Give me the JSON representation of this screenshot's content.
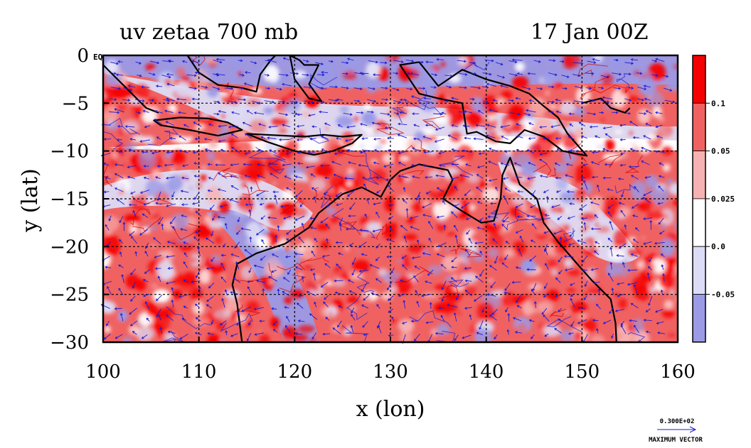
{
  "title_left": "uv zetaa 700 mb",
  "title_right": "17 Jan 00Z",
  "chart_data": {
    "type": "heatmap",
    "title": "uv zetaa 700 mb",
    "subtitle": "17 Jan 00Z",
    "xlabel": "x (lon)",
    "ylabel": "y (lat)",
    "xlim": [
      100,
      160
    ],
    "ylim": [
      -30,
      0
    ],
    "x_ticks": [
      100,
      110,
      120,
      130,
      140,
      150,
      160
    ],
    "y_ticks": [
      0,
      -5,
      -10,
      -15,
      -20,
      -25,
      -30
    ],
    "x_tick_labels": [
      "100",
      "110",
      "120",
      "130",
      "140",
      "150",
      "160"
    ],
    "y_tick_labels": [
      "0",
      "−5",
      "−10",
      "−15",
      "−20",
      "−25",
      "−30"
    ],
    "corner_label": "EQ",
    "grid": true,
    "colorbar": {
      "labels": [
        "0.1",
        "0.05",
        "0.025",
        "0.0",
        "-0.05"
      ],
      "colors": [
        "#f50000",
        "#f06262",
        "#f6b2b2",
        "#ffffff",
        "#dcdcf6",
        "#9a9ae6"
      ]
    },
    "vector_key": {
      "value_label": "0.300E+02",
      "caption": "MAXIMUM VECTOR"
    },
    "colors": {
      "coast": "#000000",
      "vectors": "#1c1cd4",
      "contour": "#d40000",
      "grid": "#000000"
    }
  }
}
